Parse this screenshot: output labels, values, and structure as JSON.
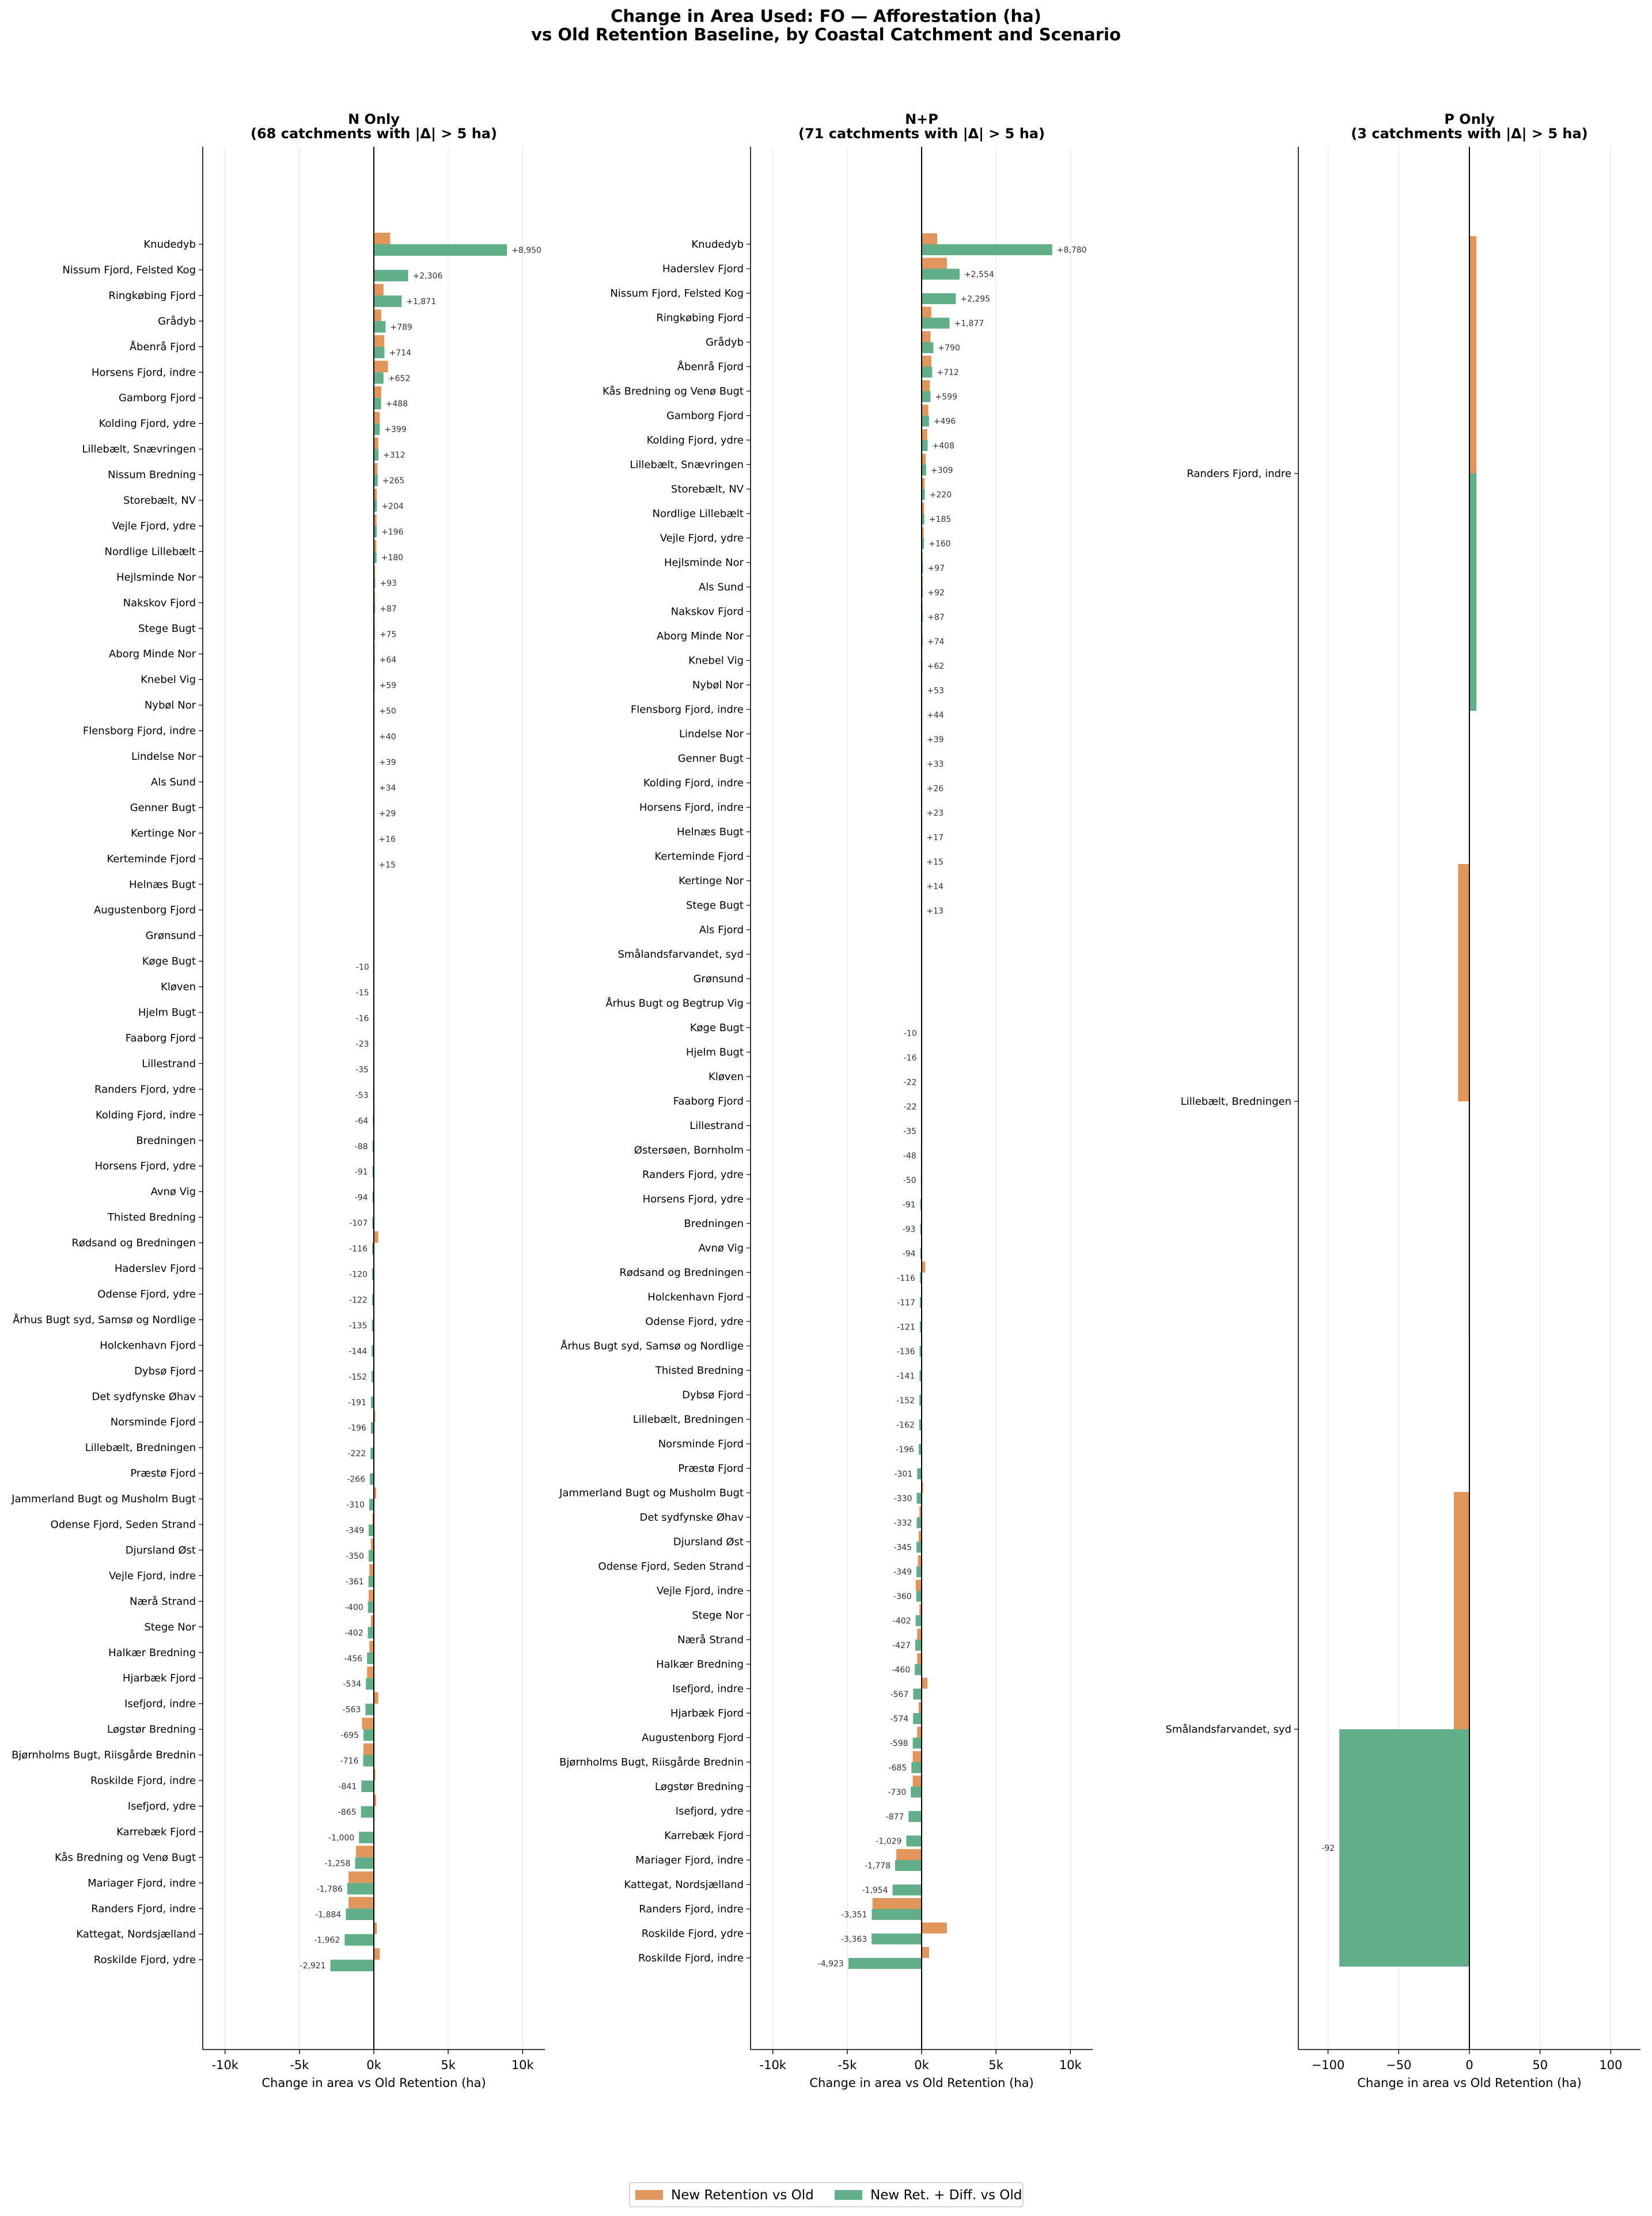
{
  "colors": {
    "series1": "#e0955a",
    "series2": "#62ae8a",
    "axis": "#000000",
    "grid": "#e6e6e6",
    "label": "#333333"
  },
  "chart_data": {
    "type": "bar",
    "title": "Change in Area Used: FO — Afforestation (ha)",
    "subtitle": "vs Old Retention Baseline, by Coastal Catchment and Scenario",
    "legend": {
      "placement": "bottom-center",
      "entries": [
        "New Retention vs Old",
        "New Ret. + Diff. vs Old"
      ]
    },
    "panels": [
      {
        "title": "N Only",
        "subtitle": "(68 catchments with |Δ| > 5 ha)",
        "xlabel": "Change in area vs Old Retention (ha)",
        "xlim": [
          -11500,
          11500
        ],
        "xticks": [
          -10000,
          -5000,
          0,
          5000,
          10000
        ],
        "xticklabels": [
          "-10k",
          "-5k",
          "0k",
          "5k",
          "10k"
        ],
        "orientation": "horizontal",
        "series": [
          {
            "name": "New Retention vs Old"
          },
          {
            "name": "New Ret. + Diff. vs Old"
          }
        ],
        "categories": [
          "Knudedyb",
          "Nissum Fjord, Felsted Kog",
          "Ringkøbing Fjord",
          "Grådyb",
          "Åbenrå Fjord",
          "Horsens Fjord, indre",
          "Gamborg Fjord",
          "Kolding Fjord, ydre",
          "Lillebælt, Snævringen",
          "Nissum Bredning",
          "Storebælt, NV",
          "Vejle Fjord, ydre",
          "Nordlige Lillebælt",
          "Hejlsminde Nor",
          "Nakskov Fjord",
          "Stege Bugt",
          "Aborg Minde Nor",
          "Knebel Vig",
          "Nybøl Nor",
          "Flensborg Fjord, indre",
          "Lindelse Nor",
          "Als Sund",
          "Genner Bugt",
          "Kertinge Nor",
          "Kerteminde Fjord",
          "Helnæs Bugt",
          "Augustenborg Fjord",
          "Grønsund",
          "Køge Bugt",
          "Kløven",
          "Hjelm Bugt",
          "Faaborg Fjord",
          "Lillestrand",
          "Randers Fjord, ydre",
          "Kolding Fjord, indre",
          "Bredningen",
          "Horsens Fjord, ydre",
          "Avnø Vig",
          "Thisted Bredning",
          "Rødsand og Bredningen",
          "Haderslev Fjord",
          "Odense Fjord, ydre",
          "Århus Bugt syd, Samsø og Nordlige",
          "Holckenhavn Fjord",
          "Dybsø Fjord",
          "Det sydfynske Øhav",
          "Norsminde Fjord",
          "Lillebælt, Bredningen",
          "Præstø Fjord",
          "Jammerland Bugt og Musholm Bugt",
          "Odense Fjord, Seden Strand",
          "Djursland Øst",
          "Vejle Fjord, indre",
          "Nærå Strand",
          "Stege Nor",
          "Halkær Bredning",
          "Hjarbæk Fjord",
          "Isefjord, indre",
          "Løgstør Bredning",
          "Bjørnholms Bugt, Riisgårde Brednin",
          "Roskilde Fjord, indre",
          "Isefjord, ydre",
          "Karrebæk Fjord",
          "Kås Bredning og Venø Bugt",
          "Mariager Fjord, indre",
          "Randers Fjord, indre",
          "Kattegat, Nordsjælland",
          "Roskilde Fjord, ydre"
        ],
        "values1": [
          1100,
          0,
          650,
          500,
          700,
          950,
          500,
          400,
          300,
          250,
          200,
          180,
          170,
          80,
          80,
          70,
          60,
          50,
          40,
          30,
          30,
          30,
          20,
          10,
          10,
          0,
          0,
          0,
          0,
          0,
          0,
          0,
          0,
          0,
          50,
          0,
          0,
          0,
          0,
          300,
          0,
          0,
          0,
          0,
          0,
          0,
          100,
          0,
          0,
          150,
          -100,
          -200,
          -300,
          -350,
          -200,
          -300,
          -450,
          300,
          -800,
          -700,
          100,
          150,
          0,
          -1200,
          -1700,
          -1700,
          200,
          400
        ],
        "values2": [
          8950,
          2306,
          1871,
          789,
          714,
          652,
          488,
          399,
          312,
          265,
          204,
          196,
          180,
          93,
          87,
          75,
          64,
          59,
          50,
          40,
          39,
          34,
          29,
          16,
          15,
          0,
          0,
          0,
          -10,
          -15,
          -16,
          -23,
          -35,
          -53,
          -64,
          -88,
          -91,
          -94,
          -107,
          -116,
          -120,
          -122,
          -135,
          -144,
          -152,
          -191,
          -196,
          -222,
          -266,
          -310,
          -349,
          -350,
          -361,
          -400,
          -402,
          -456,
          -534,
          -563,
          -695,
          -716,
          -841,
          -865,
          -1000,
          -1258,
          -1786,
          -1884,
          -1962,
          -2921
        ],
        "labels": [
          "+8,950",
          "+2,306",
          "+1,871",
          "+789",
          "+714",
          "+652",
          "+488",
          "+399",
          "+312",
          "+265",
          "+204",
          "+196",
          "+180",
          "+93",
          "+87",
          "+75",
          "+64",
          "+59",
          "+50",
          "+40",
          "+39",
          "+34",
          "+29",
          "+16",
          "+15",
          "",
          "",
          "",
          "-10",
          "-15",
          "-16",
          "-23",
          "-35",
          "-53",
          "-64",
          "-88",
          "-91",
          "-94",
          "-107",
          "-116",
          "-120",
          "-122",
          "-135",
          "-144",
          "-152",
          "-191",
          "-196",
          "-222",
          "-266",
          "-310",
          "-349",
          "-350",
          "-361",
          "-400",
          "-402",
          "-456",
          "-534",
          "-563",
          "-695",
          "-716",
          "-841",
          "-865",
          "-1,000",
          "-1,258",
          "-1,786",
          "-1,884",
          "-1,962",
          "-2,921"
        ]
      },
      {
        "title": "N+P",
        "subtitle": "(71 catchments with |Δ| > 5 ha)",
        "xlabel": "Change in area vs Old Retention (ha)",
        "xlim": [
          -11500,
          11500
        ],
        "xticks": [
          -10000,
          -5000,
          0,
          5000,
          10000
        ],
        "xticklabels": [
          "-10k",
          "-5k",
          "0k",
          "5k",
          "10k"
        ],
        "orientation": "horizontal",
        "series": [
          {
            "name": "New Retention vs Old"
          },
          {
            "name": "New Ret. + Diff. vs Old"
          }
        ],
        "categories": [
          "Knudedyb",
          "Haderslev Fjord",
          "Nissum Fjord, Felsted Kog",
          "Ringkøbing Fjord",
          "Grådyb",
          "Åbenrå Fjord",
          "Kås Bredning og Venø Bugt",
          "Gamborg Fjord",
          "Kolding Fjord, ydre",
          "Lillebælt, Snævringen",
          "Storebælt, NV",
          "Nordlige Lillebælt",
          "Vejle Fjord, ydre",
          "Hejlsminde Nor",
          "Als Sund",
          "Nakskov Fjord",
          "Aborg Minde Nor",
          "Knebel Vig",
          "Nybøl Nor",
          "Flensborg Fjord, indre",
          "Lindelse Nor",
          "Genner Bugt",
          "Kolding Fjord, indre",
          "Horsens Fjord, indre",
          "Helnæs Bugt",
          "Kerteminde Fjord",
          "Kertinge Nor",
          "Stege Bugt",
          "Als Fjord",
          "Smålandsfarvandet, syd",
          "Grønsund",
          "Århus Bugt og Begtrup Vig",
          "Køge Bugt",
          "Hjelm Bugt",
          "Kløven",
          "Faaborg Fjord",
          "Lillestrand",
          "Østersøen, Bornholm",
          "Randers Fjord, ydre",
          "Horsens Fjord, ydre",
          "Bredningen",
          "Avnø Vig",
          "Rødsand og Bredningen",
          "Holckenhavn Fjord",
          "Odense Fjord, ydre",
          "Århus Bugt syd, Samsø og Nordlige",
          "Thisted Bredning",
          "Dybsø Fjord",
          "Lillebælt, Bredningen",
          "Norsminde Fjord",
          "Præstø Fjord",
          "Jammerland Bugt og Musholm Bugt",
          "Det sydfynske Øhav",
          "Djursland Øst",
          "Odense Fjord, Seden Strand",
          "Vejle Fjord, indre",
          "Stege Nor",
          "Nærå Strand",
          "Halkær Bredning",
          "Isefjord, indre",
          "Hjarbæk Fjord",
          "Augustenborg Fjord",
          "Bjørnholms Bugt, Riisgårde Brednin",
          "Løgstør Bredning",
          "Isefjord, ydre",
          "Karrebæk Fjord",
          "Mariager Fjord, indre",
          "Kattegat, Nordsjælland",
          "Randers Fjord, indre",
          "Roskilde Fjord, ydre",
          "Roskilde Fjord, indre"
        ],
        "values1": [
          1050,
          1700,
          0,
          650,
          600,
          650,
          550,
          450,
          380,
          280,
          200,
          170,
          140,
          80,
          80,
          70,
          60,
          50,
          40,
          30,
          30,
          25,
          20,
          20,
          15,
          10,
          10,
          10,
          0,
          0,
          0,
          0,
          0,
          0,
          0,
          0,
          0,
          0,
          0,
          0,
          0,
          0,
          250,
          0,
          0,
          0,
          0,
          0,
          0,
          0,
          0,
          100,
          -150,
          -200,
          -250,
          -400,
          -150,
          -300,
          -300,
          400,
          -200,
          -300,
          -600,
          -600,
          0,
          0,
          -1700,
          0,
          -3300,
          1700,
          500
        ],
        "values2": [
          8780,
          2554,
          2295,
          1877,
          790,
          712,
          599,
          496,
          408,
          309,
          220,
          185,
          160,
          97,
          92,
          87,
          74,
          62,
          53,
          44,
          39,
          33,
          26,
          23,
          17,
          15,
          14,
          13,
          0,
          0,
          0,
          0,
          -10,
          -16,
          -22,
          -22,
          -35,
          -48,
          -50,
          -91,
          -93,
          -94,
          -116,
          -117,
          -121,
          -136,
          -141,
          -152,
          -162,
          -196,
          -301,
          -330,
          -332,
          -345,
          -349,
          -360,
          -402,
          -427,
          -460,
          -567,
          -574,
          -598,
          -685,
          -730,
          -877,
          -1029,
          -1778,
          -1954,
          -3351,
          -3363,
          -4923
        ],
        "labels": [
          "+8,780",
          "+2,554",
          "+2,295",
          "+1,877",
          "+790",
          "+712",
          "+599",
          "+496",
          "+408",
          "+309",
          "+220",
          "+185",
          "+160",
          "+97",
          "+92",
          "+87",
          "+74",
          "+62",
          "+53",
          "+44",
          "+39",
          "+33",
          "+26",
          "+23",
          "+17",
          "+15",
          "+14",
          "+13",
          "",
          "",
          "",
          "",
          "-10",
          "-16",
          "-22",
          "-22",
          "-35",
          "-48",
          "-50",
          "-91",
          "-93",
          "-94",
          "-116",
          "-117",
          "-121",
          "-136",
          "-141",
          "-152",
          "-162",
          "-196",
          "-301",
          "-330",
          "-332",
          "-345",
          "-349",
          "-360",
          "-402",
          "-427",
          "-460",
          "-567",
          "-574",
          "-598",
          "-685",
          "-730",
          "-877",
          "-1,029",
          "-1,778",
          "-1,954",
          "-3,351",
          "-3,363",
          "-4,923"
        ]
      },
      {
        "title": "P Only",
        "subtitle": "(3 catchments with |Δ| > 5 ha)",
        "xlabel": "Change in area vs Old Retention (ha)",
        "xlim": [
          -121,
          121
        ],
        "xticks": [
          -100,
          -50,
          0,
          50,
          100
        ],
        "xticklabels": [
          "−100",
          "−50",
          "0",
          "50",
          "100"
        ],
        "orientation": "horizontal",
        "series": [
          {
            "name": "New Retention vs Old"
          },
          {
            "name": "New Ret. + Diff. vs Old"
          }
        ],
        "categories": [
          "Randers Fjord, indre",
          "Lillebælt, Bredningen",
          "Smålandsfarvandet, syd"
        ],
        "values1": [
          5,
          -8,
          -11
        ],
        "values2": [
          5,
          -0.5,
          -92
        ],
        "labels": [
          "",
          "",
          "-92"
        ]
      }
    ]
  }
}
